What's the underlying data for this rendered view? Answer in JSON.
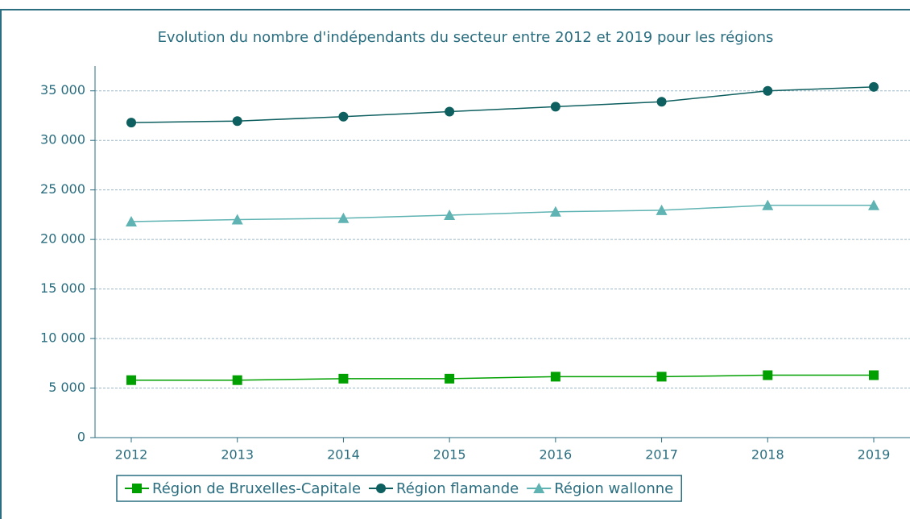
{
  "chart_data": {
    "type": "line",
    "title": "Evolution du nombre d'indépendants du secteur entre 2012 et 2019 pour les régions",
    "categories": [
      "2012",
      "2013",
      "2014",
      "2015",
      "2016",
      "2017",
      "2018",
      "2019"
    ],
    "series": [
      {
        "name": "Région de Bruxelles-Capitale",
        "color": "#00a000",
        "marker": "square",
        "values": [
          5800,
          5800,
          5950,
          5950,
          6150,
          6150,
          6300,
          6300
        ]
      },
      {
        "name": "Région flamande",
        "color": "#0e5f5f",
        "marker": "circle",
        "values": [
          31800,
          31950,
          32400,
          32900,
          33400,
          33900,
          35000,
          35400
        ]
      },
      {
        "name": "Région wallonne",
        "color": "#5fb3b3",
        "marker": "triangle",
        "values": [
          21800,
          22000,
          22150,
          22450,
          22800,
          22950,
          23450,
          23450
        ]
      }
    ],
    "ylim": [
      0,
      37500
    ],
    "yticks": [
      0,
      {
        "value": 5000,
        "label": "5 000"
      },
      {
        "value": 10000,
        "label": "10 000"
      },
      {
        "value": 15000,
        "label": "15 000"
      },
      {
        "value": 20000,
        "label": "20 000"
      },
      {
        "value": 25000,
        "label": "25 000"
      },
      {
        "value": 30000,
        "label": "30 000"
      },
      {
        "value": 35000,
        "label": "35 000"
      }
    ],
    "grid": true,
    "legend": "bottom"
  }
}
